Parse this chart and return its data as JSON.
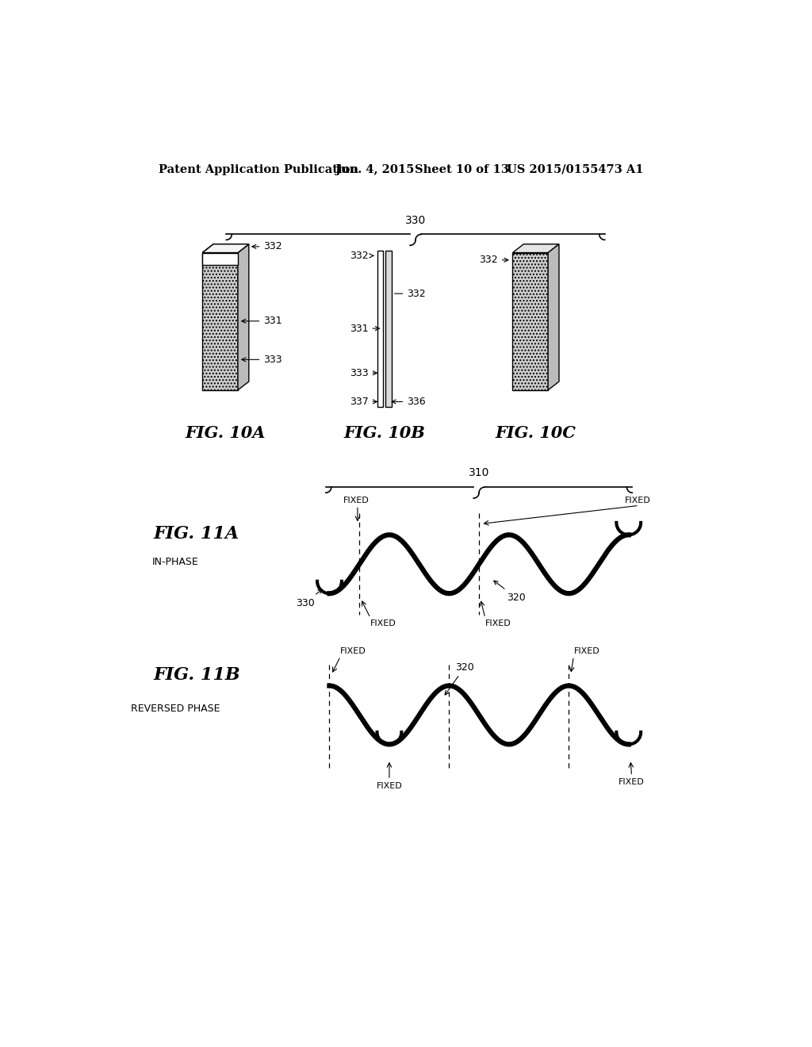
{
  "bg_color": "#ffffff",
  "header_text": "Patent Application Publication",
  "header_date": "Jun. 4, 2015",
  "header_sheet": "Sheet 10 of 13",
  "header_patent": "US 2015/0155473 A1",
  "fig10a_label": "FIG. 10A",
  "fig10b_label": "FIG. 10B",
  "fig10c_label": "FIG. 10C",
  "fig11a_label": "FIG. 11A",
  "fig11b_label": "FIG. 11B",
  "fig11a_sublabel": "IN-PHASE",
  "fig11b_sublabel": "REVERSED PHASE",
  "brace330": "330",
  "brace310": "310",
  "wave_lw": 4.5,
  "arc_r": 20,
  "wave_amp": 48,
  "wave_cycles": 2.5
}
